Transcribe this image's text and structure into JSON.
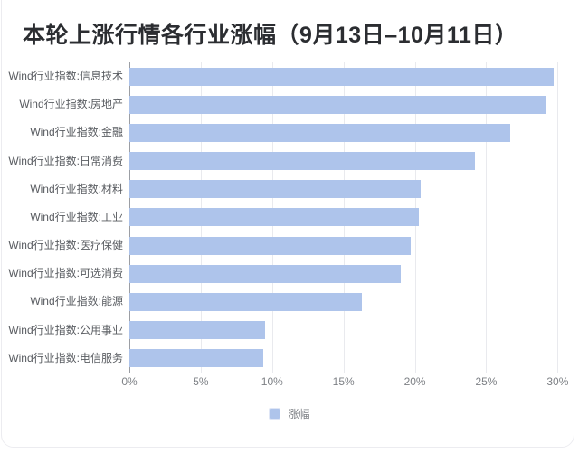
{
  "title": "本轮上涨行情各行业涨幅（9月13日–10月11日）",
  "legend": {
    "label": "涨幅"
  },
  "colors": {
    "bar_fill": "#aec4eb",
    "legend_swatch": "#aec4eb",
    "grid_line": "#e9eaee",
    "axis_line": "#9b9ea4",
    "tick_label": "#7d8085",
    "category_label": "#595c61",
    "title": "#2b2d31",
    "card_border": "#ececf0",
    "background": "#ffffff"
  },
  "chart_data": {
    "type": "bar",
    "orientation": "horizontal",
    "title": "本轮上涨行情各行业涨幅（9月13日–10月11日）",
    "categories": [
      "Wind行业指数:信息技术",
      "Wind行业指数:房地产",
      "Wind行业指数:金融",
      "Wind行业指数:日常消费",
      "Wind行业指数:材料",
      "Wind行业指数:工业",
      "Wind行业指数:医疗保健",
      "Wind行业指数:可选消费",
      "Wind行业指数:能源",
      "Wind行业指数:公用事业",
      "Wind行业指数:电信服务"
    ],
    "series": [
      {
        "name": "涨幅",
        "unit": "%",
        "values": [
          29.7,
          29.2,
          26.7,
          24.2,
          20.4,
          20.3,
          19.7,
          19.0,
          16.3,
          9.5,
          9.4
        ]
      }
    ],
    "x_ticks": {
      "labels": [
        "0%",
        "5%",
        "10%",
        "15%",
        "20%",
        "25%",
        "30%"
      ],
      "values": [
        0,
        5,
        10,
        15,
        20,
        25,
        30
      ]
    },
    "xlim": [
      0,
      30.8
    ],
    "xlabel": "",
    "ylabel": "",
    "grid": true,
    "legend_position": "bottom"
  }
}
